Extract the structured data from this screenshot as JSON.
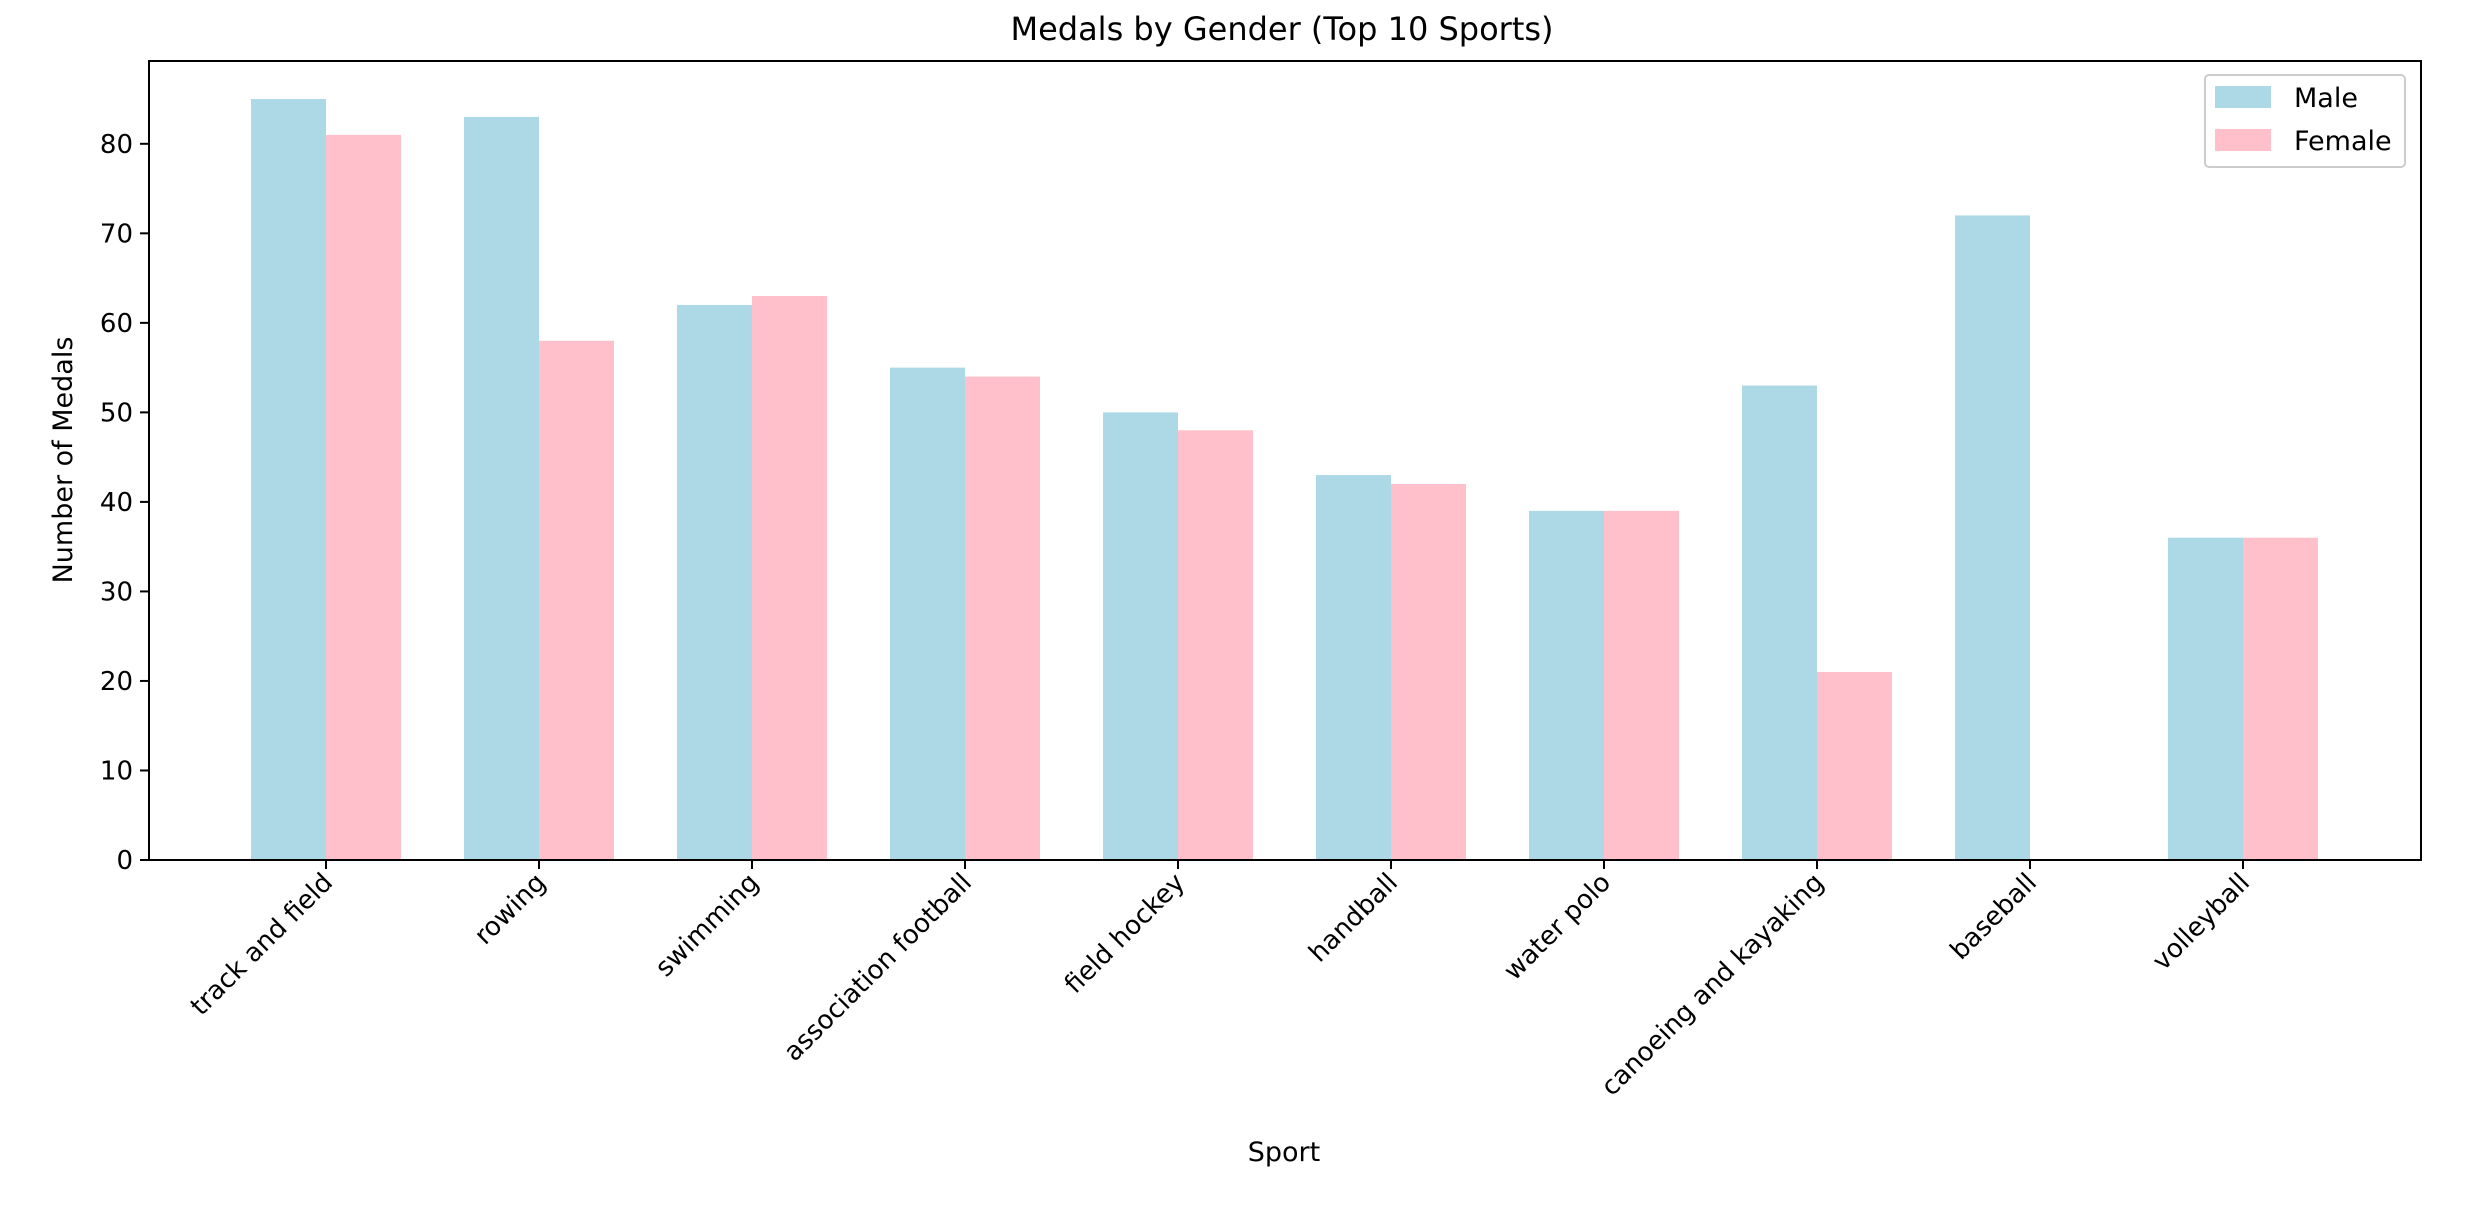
{
  "chart_data": {
    "type": "bar",
    "title": "Medals by Gender (Top 10 Sports)",
    "xlabel": "Sport",
    "ylabel": "Number of Medals",
    "categories": [
      "track and field",
      "rowing",
      "swimming",
      "association football",
      "field hockey",
      "handball",
      "water polo",
      "canoeing and kayaking",
      "baseball",
      "volleyball"
    ],
    "series": [
      {
        "name": "Male",
        "color": "#add8e6",
        "values": [
          85,
          83,
          62,
          55,
          50,
          43,
          39,
          53,
          72,
          36
        ]
      },
      {
        "name": "Female",
        "color": "#ffc0cb",
        "values": [
          81,
          58,
          63,
          54,
          48,
          42,
          39,
          21,
          0,
          36
        ]
      }
    ],
    "ylim": [
      0,
      89.25
    ],
    "yticks": [
      0,
      10,
      20,
      30,
      40,
      50,
      60,
      70,
      80
    ],
    "legend": "top-right",
    "grid": false
  }
}
